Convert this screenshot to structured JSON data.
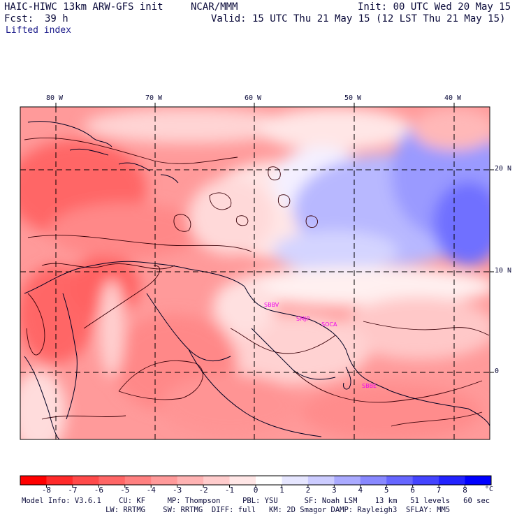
{
  "header": {
    "model_title": "HAIC-HIWC 13km ARW-GFS init",
    "org": "NCAR/MMM",
    "init": "Init: 00 UTC Wed 20 May 15",
    "fcst_label": "Fcst:",
    "fcst_value": "39 h",
    "valid": "Valid: 15 UTC Thu 21 May 15 (12 LST Thu 21 May 15)",
    "field": "Lifted index"
  },
  "map": {
    "lon_labels": [
      "80 W",
      "70 W",
      "60 W",
      "50 W",
      "40 W"
    ],
    "lat_labels": [
      "20 N",
      "10 N",
      "0"
    ],
    "stations": [
      "SBBV",
      "SMJP",
      "SOCA",
      "SBBE"
    ]
  },
  "colorbar": {
    "levels": [
      "-8",
      "-7",
      "-6",
      "-5",
      "-4",
      "-3",
      "-2",
      "-1",
      "0",
      "1",
      "2",
      "3",
      "4",
      "5",
      "6",
      "7",
      "8"
    ],
    "unit": "°C",
    "colors": [
      "#ff0000",
      "#ff2a2a",
      "#ff4a4a",
      "#ff6666",
      "#ff8080",
      "#ff9a9a",
      "#ffb3b3",
      "#ffcccc",
      "#ffe6e6",
      "#ffffff",
      "#e6e6ff",
      "#ccccff",
      "#aaaaff",
      "#8888ff",
      "#6666ff",
      "#4444ff",
      "#2222ff",
      "#0000ff"
    ]
  },
  "footer": {
    "line1": "Model Info: V3.6.1    CU: KF     MP: Thompson     PBL: YSU      SF: Noah LSM    13 km   51 levels   60 sec",
    "line2": "                   LW: RRTMG    SW: RRTMG  DIFF: full   KM: 2D Smagor DAMP: Rayleigh3  SFLAY: MM5"
  }
}
